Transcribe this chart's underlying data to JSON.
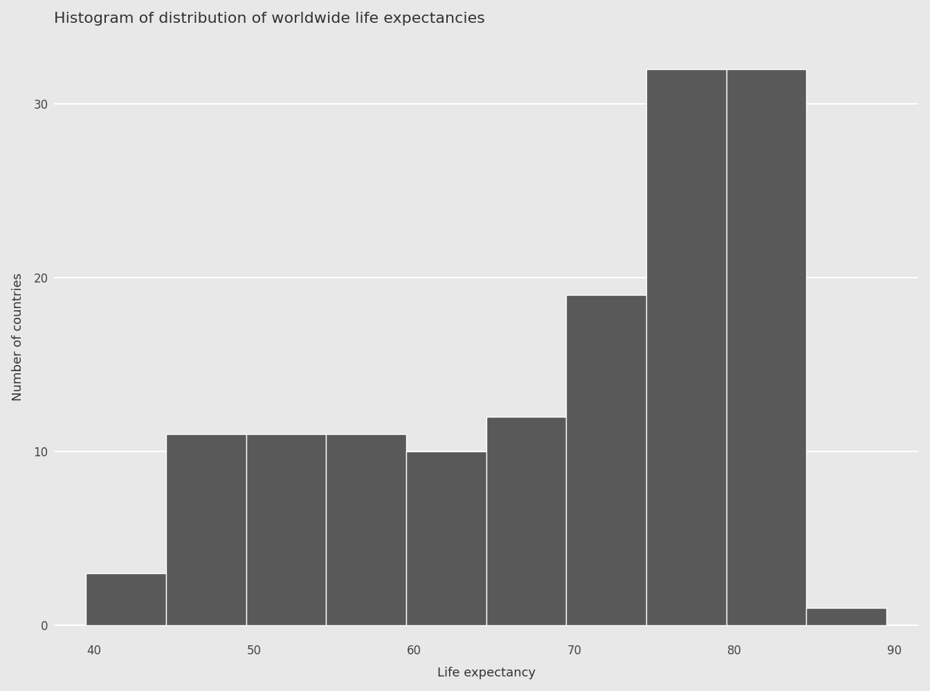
{
  "title": "Histogram of distribution of worldwide life expectancies",
  "xlabel": "Life expectancy",
  "ylabel": "Number of countries",
  "bar_color": "#595959",
  "bar_edge_color": "#ffffff",
  "outer_background": "#e8e8e8",
  "panel_background": "#e8e8e8",
  "grid_color": "#ffffff",
  "bin_edges": [
    39.5,
    44.5,
    49.5,
    54.5,
    59.5,
    64.5,
    69.5,
    74.5,
    79.5,
    84.5,
    89.5
  ],
  "counts": [
    3,
    11,
    11,
    11,
    10,
    12,
    19,
    32,
    32,
    1
  ],
  "xlim": [
    37.5,
    91.5
  ],
  "ylim": [
    -0.8,
    34
  ],
  "xticks": [
    40,
    50,
    60,
    70,
    80,
    90
  ],
  "yticks": [
    0,
    10,
    20,
    30
  ],
  "title_fontsize": 16,
  "label_fontsize": 13,
  "tick_fontsize": 12
}
